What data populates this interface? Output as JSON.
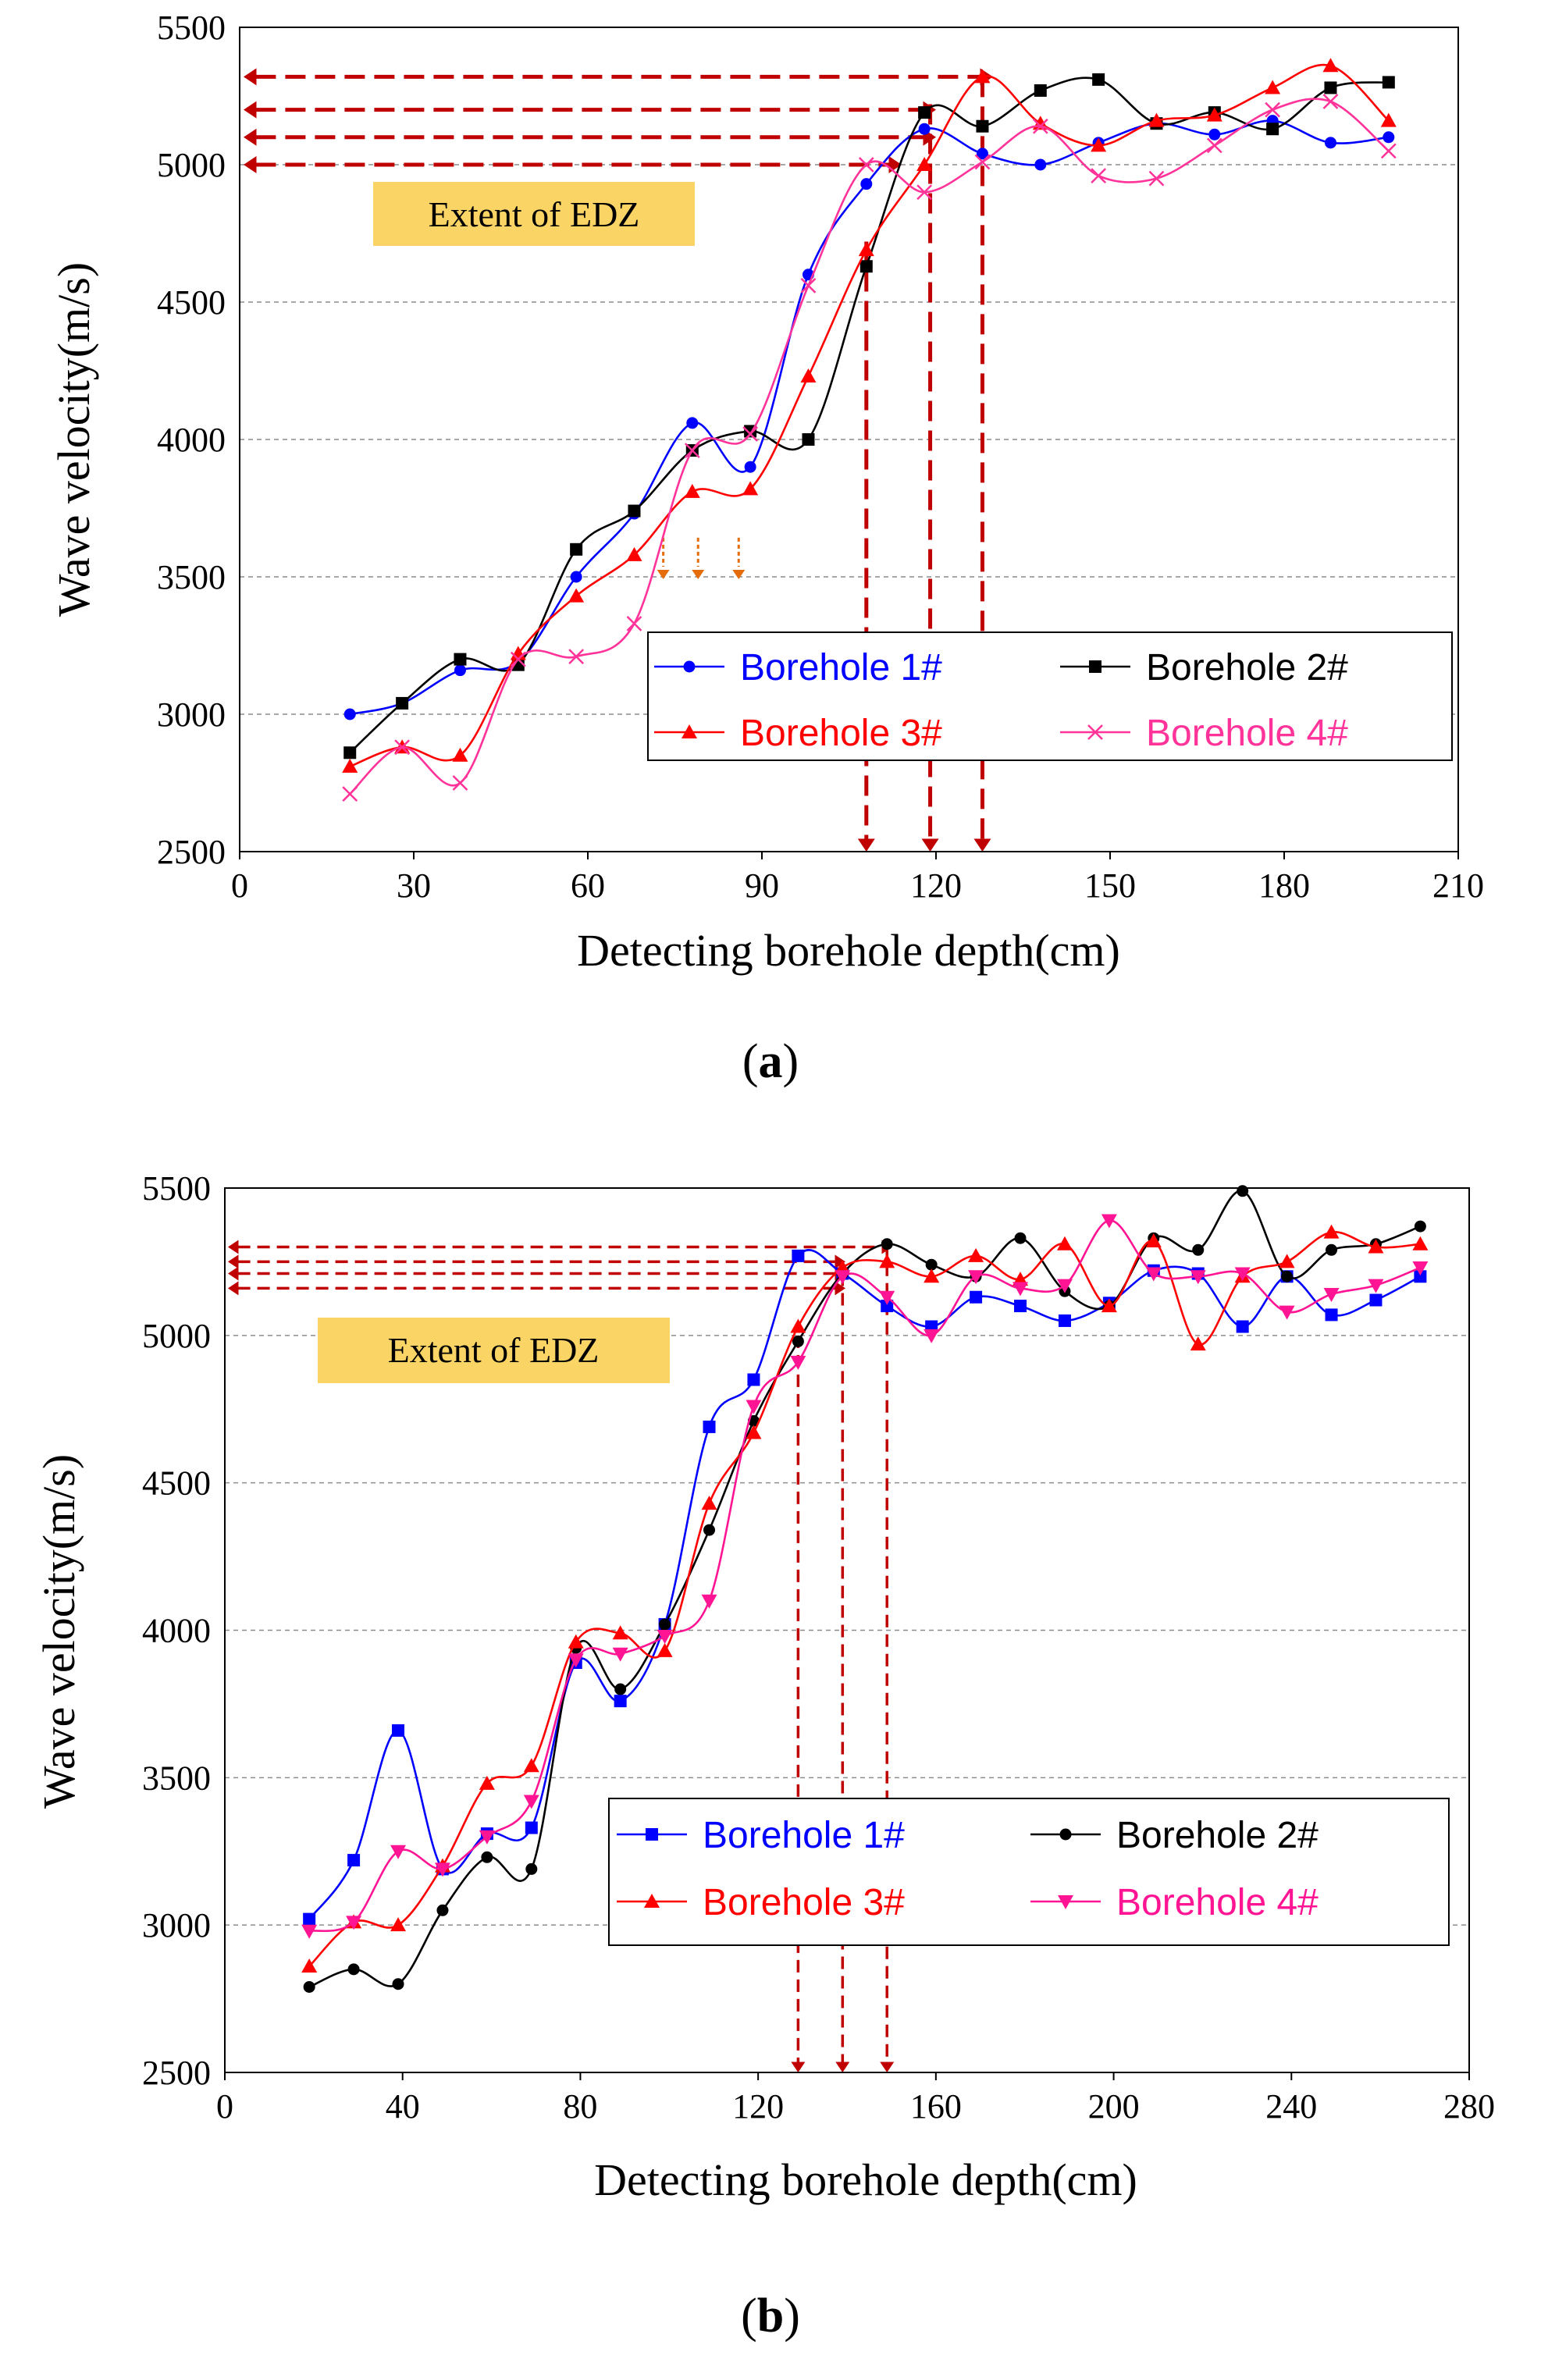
{
  "chart_data": [
    {
      "type": "line",
      "panel_label": "a",
      "xlabel": "Detecting borehole depth(cm)",
      "ylabel": "Wave velocity(m/s)",
      "xlim": [
        0,
        210
      ],
      "ylim": [
        2500,
        5500
      ],
      "xticks": [
        0,
        30,
        60,
        90,
        120,
        150,
        180,
        210
      ],
      "yticks": [
        2500,
        3000,
        3500,
        4000,
        4500,
        5000,
        5500
      ],
      "grid": "horizontal dashed",
      "legend_position": "lower-right",
      "annotation": "Extent of EDZ",
      "edz_depths": [
        108,
        119,
        128
      ],
      "edz_velocities": [
        5000,
        5100,
        5200,
        5320
      ],
      "minor_markers_x": [
        73,
        79,
        86
      ],
      "series": [
        {
          "name": "Borehole 1#",
          "color": "#0000ff",
          "marker": "circle",
          "x": [
            19,
            28,
            38,
            48,
            58,
            68,
            78,
            88,
            98,
            108,
            118,
            128,
            138,
            148,
            158,
            168,
            178,
            188,
            198
          ],
          "values": [
            3000,
            3040,
            3160,
            3190,
            3500,
            3730,
            4060,
            3900,
            4600,
            4930,
            5130,
            5040,
            5000,
            5080,
            5150,
            5110,
            5160,
            5080,
            5100
          ]
        },
        {
          "name": "Borehole 2#",
          "color": "#000000",
          "marker": "square",
          "x": [
            19,
            28,
            38,
            48,
            58,
            68,
            78,
            88,
            98,
            108,
            118,
            128,
            138,
            148,
            158,
            168,
            178,
            188,
            198
          ],
          "values": [
            2860,
            3040,
            3200,
            3180,
            3600,
            3740,
            3960,
            4030,
            4000,
            4630,
            5190,
            5140,
            5270,
            5310,
            5150,
            5190,
            5130,
            5280,
            5300
          ]
        },
        {
          "name": "Borehole 3#",
          "color": "#ff0000",
          "marker": "triangle",
          "x": [
            19,
            28,
            38,
            48,
            58,
            68,
            78,
            88,
            98,
            108,
            118,
            128,
            138,
            148,
            158,
            168,
            178,
            188,
            198
          ],
          "values": [
            2810,
            2880,
            2850,
            3220,
            3430,
            3580,
            3810,
            3820,
            4230,
            4690,
            5000,
            5320,
            5150,
            5070,
            5160,
            5180,
            5280,
            5360,
            5160
          ]
        },
        {
          "name": "Borehole 4#",
          "color": "#ff3399",
          "marker": "x",
          "x": [
            19,
            28,
            38,
            48,
            58,
            68,
            78,
            88,
            98,
            108,
            118,
            128,
            138,
            148,
            158,
            168,
            178,
            188,
            198
          ],
          "values": [
            2710,
            2880,
            2750,
            3200,
            3210,
            3330,
            3960,
            4020,
            4560,
            5000,
            4900,
            5010,
            5140,
            4960,
            4950,
            5070,
            5200,
            5230,
            5050
          ]
        }
      ]
    },
    {
      "type": "line",
      "panel_label": "b",
      "xlabel": "Detecting borehole depth(cm)",
      "ylabel": "Wave velocity(m/s)",
      "xlim": [
        0,
        280
      ],
      "ylim": [
        2500,
        5500
      ],
      "xticks": [
        0,
        40,
        80,
        120,
        160,
        200,
        240,
        280
      ],
      "yticks": [
        2500,
        3000,
        3500,
        4000,
        4500,
        5000,
        5500
      ],
      "grid": "horizontal dashed",
      "legend_position": "lower-right",
      "annotation": "Extent of EDZ",
      "edz_depths": [
        129,
        139,
        149
      ],
      "edz_velocities": [
        5160,
        5210,
        5250,
        5300
      ],
      "series": [
        {
          "name": "Borehole 1#",
          "color": "#0000ff",
          "marker": "square",
          "x": [
            19,
            29,
            39,
            49,
            59,
            69,
            79,
            89,
            99,
            109,
            119,
            129,
            139,
            149,
            159,
            169,
            179,
            189,
            199,
            209,
            219,
            229,
            239,
            249,
            259,
            269
          ],
          "values": [
            3020,
            3220,
            3660,
            3190,
            3310,
            3330,
            3890,
            3760,
            4020,
            4690,
            4850,
            5270,
            5210,
            5100,
            5030,
            5130,
            5100,
            5050,
            5110,
            5220,
            5210,
            5030,
            5200,
            5070,
            5120,
            5200
          ]
        },
        {
          "name": "Borehole 2#",
          "color": "#000000",
          "marker": "circle",
          "x": [
            19,
            29,
            39,
            49,
            59,
            69,
            79,
            89,
            99,
            109,
            119,
            129,
            139,
            149,
            159,
            169,
            179,
            189,
            199,
            209,
            219,
            229,
            239,
            249,
            259,
            269
          ],
          "values": [
            2790,
            2850,
            2800,
            3050,
            3230,
            3190,
            3940,
            3800,
            4020,
            4340,
            4710,
            4980,
            5210,
            5310,
            5240,
            5200,
            5330,
            5150,
            5100,
            5330,
            5290,
            5490,
            5200,
            5290,
            5310,
            5370
          ]
        },
        {
          "name": "Borehole 3#",
          "color": "#ff0000",
          "marker": "triangle",
          "x": [
            19,
            29,
            39,
            49,
            59,
            69,
            79,
            89,
            99,
            109,
            119,
            129,
            139,
            149,
            159,
            169,
            179,
            189,
            199,
            209,
            219,
            229,
            239,
            249,
            259,
            269
          ],
          "values": [
            2860,
            3010,
            3000,
            3200,
            3480,
            3540,
            3960,
            3990,
            3930,
            4430,
            4670,
            5030,
            5230,
            5250,
            5200,
            5270,
            5190,
            5310,
            5100,
            5320,
            4970,
            5200,
            5250,
            5350,
            5300,
            5310
          ]
        },
        {
          "name": "Borehole 4#",
          "color": "#ff1493",
          "marker": "triangle-down",
          "x": [
            19,
            29,
            39,
            49,
            59,
            69,
            79,
            89,
            99,
            109,
            119,
            129,
            139,
            149,
            159,
            169,
            179,
            189,
            199,
            209,
            219,
            229,
            239,
            249,
            259,
            269
          ],
          "values": [
            2980,
            3010,
            3250,
            3190,
            3300,
            3420,
            3900,
            3920,
            3980,
            4100,
            4760,
            4910,
            5200,
            5130,
            5000,
            5200,
            5160,
            5170,
            5390,
            5210,
            5200,
            5210,
            5080,
            5140,
            5170,
            5230
          ]
        }
      ]
    }
  ]
}
